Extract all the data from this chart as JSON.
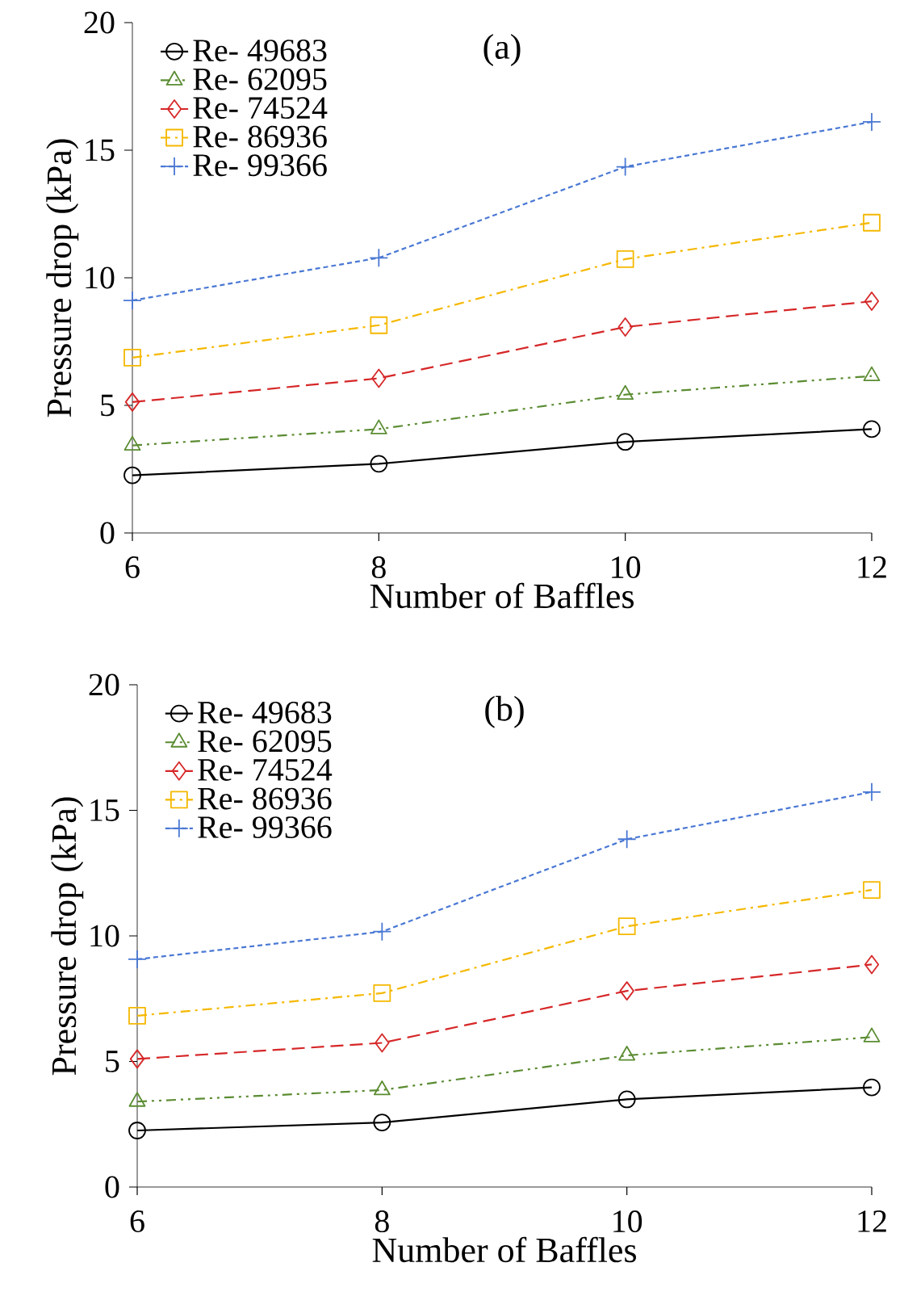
{
  "chart_data": [
    {
      "type": "line",
      "title": "(a)",
      "xlabel": "Number of Baffles",
      "ylabel": "Pressure drop (kPa)",
      "x": [
        6,
        8,
        10,
        12
      ],
      "xlim": [
        6,
        12
      ],
      "xticks": [
        6,
        8,
        10,
        12
      ],
      "ylim": [
        0,
        20
      ],
      "yticks": [
        0,
        5,
        10,
        15,
        20
      ],
      "grid": false,
      "legend": "top left",
      "series": [
        {
          "name": "Re- 49683",
          "color": "#000000",
          "marker": "circle",
          "line_style": "solid",
          "values": [
            2.26,
            2.71,
            3.57,
            4.07
          ]
        },
        {
          "name": "Re- 62095",
          "color": "#5b8c32",
          "marker": "triangle",
          "line_style": "dashdotdot",
          "values": [
            3.43,
            4.07,
            5.42,
            6.15
          ]
        },
        {
          "name": "Re- 74524",
          "color": "#d62728",
          "marker": "diamond",
          "line_style": "dashed",
          "values": [
            5.13,
            6.06,
            8.07,
            9.08
          ]
        },
        {
          "name": "Re- 86936",
          "color": "#f5b800",
          "marker": "square",
          "line_style": "dashdot",
          "values": [
            6.87,
            8.14,
            10.73,
            12.16
          ]
        },
        {
          "name": "Re- 99366",
          "color": "#4a78d4",
          "marker": "plus",
          "line_style": "shortdash",
          "values": [
            9.11,
            10.78,
            14.35,
            16.11
          ]
        }
      ]
    },
    {
      "type": "line",
      "title": "(b)",
      "xlabel": "Number of Baffles",
      "ylabel": "Pressure drop (kPa)",
      "x": [
        6,
        8,
        10,
        12
      ],
      "xlim": [
        6,
        12
      ],
      "xticks": [
        6,
        8,
        10,
        12
      ],
      "ylim": [
        0,
        20
      ],
      "yticks": [
        0,
        5,
        10,
        15,
        20
      ],
      "grid": false,
      "legend": "top left",
      "series": [
        {
          "name": "Re- 49683",
          "color": "#000000",
          "marker": "circle",
          "line_style": "solid",
          "values": [
            2.25,
            2.57,
            3.49,
            3.97
          ]
        },
        {
          "name": "Re- 62095",
          "color": "#5b8c32",
          "marker": "triangle",
          "line_style": "dashdotdot",
          "values": [
            3.4,
            3.86,
            5.24,
            5.97
          ]
        },
        {
          "name": "Re- 74524",
          "color": "#d62728",
          "marker": "diamond",
          "line_style": "dashed",
          "values": [
            5.1,
            5.74,
            7.81,
            8.86
          ]
        },
        {
          "name": "Re- 86936",
          "color": "#f5b800",
          "marker": "square",
          "line_style": "dashdot",
          "values": [
            6.82,
            7.72,
            10.38,
            11.83
          ]
        },
        {
          "name": "Re- 99366",
          "color": "#4a78d4",
          "marker": "plus",
          "line_style": "shortdash",
          "values": [
            9.07,
            10.17,
            13.85,
            15.73
          ]
        }
      ]
    }
  ]
}
